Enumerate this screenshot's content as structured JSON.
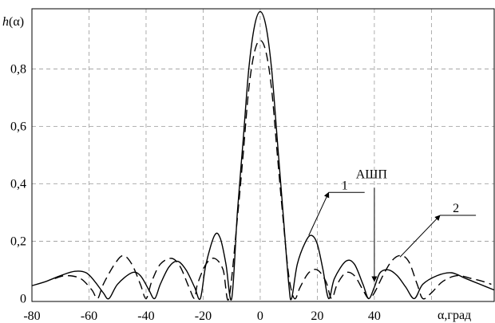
{
  "chart_data": {
    "type": "line",
    "ylabel": {
      "func": "h",
      "arg": "(α)"
    },
    "xlabel": "α,град",
    "xlim": [
      -80,
      82
    ],
    "ylim": [
      -0.01,
      1.01
    ],
    "x_ticks": [
      -80,
      -60,
      -40,
      -20,
      0,
      20,
      40
    ],
    "x_tick_labels": [
      "-80",
      "-60",
      "-40",
      "-20",
      "0",
      "20",
      "40"
    ],
    "y_ticks": [
      0,
      0.2,
      0.4,
      0.6,
      0.8
    ],
    "y_tick_labels": [
      "0",
      "0,2",
      "0,4",
      "0,6",
      "0,8"
    ],
    "grid": true,
    "series": [
      {
        "name": "1",
        "style": "solid",
        "points": [
          [
            -80,
            0.045
          ],
          [
            -75,
            0.06
          ],
          [
            -70,
            0.08
          ],
          [
            -65,
            0.095
          ],
          [
            -61,
            0.09
          ],
          [
            -58,
            0.06
          ],
          [
            -55,
            0.02
          ],
          [
            -53,
            0.0
          ],
          [
            -50,
            0.05
          ],
          [
            -45,
            0.09
          ],
          [
            -42,
            0.08
          ],
          [
            -39,
            0.03
          ],
          [
            -37,
            0.0
          ],
          [
            -35,
            0.05
          ],
          [
            -32,
            0.11
          ],
          [
            -29,
            0.13
          ],
          [
            -26,
            0.1
          ],
          [
            -23,
            0.04
          ],
          [
            -21,
            0.0
          ],
          [
            -19,
            0.12
          ],
          [
            -16,
            0.22
          ],
          [
            -14,
            0.21
          ],
          [
            -12,
            0.12
          ],
          [
            -10,
            0.0
          ],
          [
            -8,
            0.3
          ],
          [
            -6,
            0.55
          ],
          [
            -4,
            0.8
          ],
          [
            -2,
            0.95
          ],
          [
            0,
            1.0
          ],
          [
            2,
            0.95
          ],
          [
            4,
            0.8
          ],
          [
            6,
            0.55
          ],
          [
            8,
            0.3
          ],
          [
            10,
            0.05
          ],
          [
            11,
            0.0
          ],
          [
            13,
            0.12
          ],
          [
            16,
            0.2
          ],
          [
            18,
            0.22
          ],
          [
            20,
            0.19
          ],
          [
            22,
            0.1
          ],
          [
            24,
            0.0
          ],
          [
            26,
            0.07
          ],
          [
            30,
            0.13
          ],
          [
            33,
            0.12
          ],
          [
            36,
            0.05
          ],
          [
            38,
            0.0
          ],
          [
            40,
            0.04
          ],
          [
            42,
            0.09
          ],
          [
            45,
            0.1
          ],
          [
            48,
            0.08
          ],
          [
            51,
            0.04
          ],
          [
            54,
            0.0
          ],
          [
            57,
            0.05
          ],
          [
            62,
            0.08
          ],
          [
            67,
            0.09
          ],
          [
            72,
            0.07
          ],
          [
            77,
            0.05
          ],
          [
            82,
            0.03
          ]
        ]
      },
      {
        "name": "2",
        "style": "dashed",
        "points": [
          [
            -72,
            0.07
          ],
          [
            -68,
            0.08
          ],
          [
            -63,
            0.07
          ],
          [
            -59,
            0.03
          ],
          [
            -57,
            0.0
          ],
          [
            -55,
            0.05
          ],
          [
            -51,
            0.12
          ],
          [
            -48,
            0.15
          ],
          [
            -45,
            0.12
          ],
          [
            -42,
            0.05
          ],
          [
            -40,
            0.0
          ],
          [
            -38,
            0.06
          ],
          [
            -35,
            0.12
          ],
          [
            -31,
            0.14
          ],
          [
            -28,
            0.11
          ],
          [
            -25,
            0.04
          ],
          [
            -23,
            0.0
          ],
          [
            -22,
            0.05
          ],
          [
            -19,
            0.12
          ],
          [
            -16,
            0.14
          ],
          [
            -13,
            0.1
          ],
          [
            -11,
            0.0
          ],
          [
            -8,
            0.28
          ],
          [
            -6,
            0.5
          ],
          [
            -4,
            0.73
          ],
          [
            -2,
            0.86
          ],
          [
            0,
            0.9
          ],
          [
            2,
            0.86
          ],
          [
            4,
            0.73
          ],
          [
            6,
            0.5
          ],
          [
            8,
            0.28
          ],
          [
            10,
            0.08
          ],
          [
            12,
            0.0
          ],
          [
            14,
            0.04
          ],
          [
            17,
            0.09
          ],
          [
            20,
            0.1
          ],
          [
            23,
            0.06
          ],
          [
            25,
            0.0
          ],
          [
            27,
            0.05
          ],
          [
            30,
            0.09
          ],
          [
            33,
            0.08
          ],
          [
            36,
            0.03
          ],
          [
            38,
            0.0
          ],
          [
            40,
            0.02
          ],
          [
            43,
            0.08
          ],
          [
            46,
            0.13
          ],
          [
            49,
            0.15
          ],
          [
            52,
            0.13
          ],
          [
            55,
            0.05
          ],
          [
            57,
            0.0
          ],
          [
            60,
            0.02
          ],
          [
            64,
            0.06
          ],
          [
            69,
            0.08
          ],
          [
            74,
            0.07
          ],
          [
            78,
            0.06
          ],
          [
            81,
            0.05
          ]
        ]
      }
    ],
    "annotations": [
      {
        "text": "1",
        "anchor": [
          17,
          0.22
        ],
        "label_pos": [
          24,
          0.37
        ]
      },
      {
        "text": "2",
        "anchor": [
          49,
          0.145
        ],
        "label_pos": [
          63,
          0.29
        ]
      },
      {
        "text": "АШП",
        "arrow_to": [
          40,
          0.06
        ],
        "label_pos": [
          39,
          0.42
        ]
      }
    ]
  }
}
